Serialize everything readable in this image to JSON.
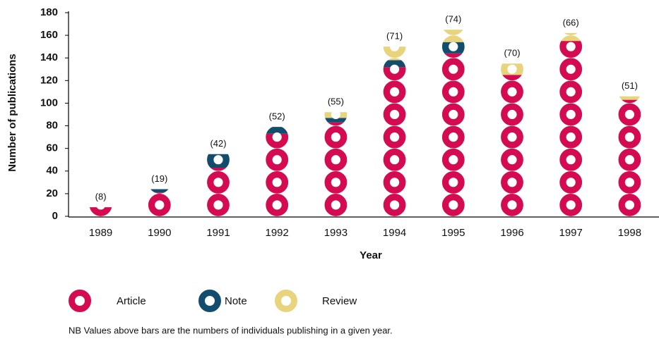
{
  "chart_data": {
    "type": "pictogram_stacked_bar",
    "xlabel": "Year",
    "ylabel": "Number of publications",
    "categories": [
      "1989",
      "1990",
      "1991",
      "1992",
      "1993",
      "1994",
      "1995",
      "1996",
      "1997",
      "1998"
    ],
    "series": [
      {
        "name": "Article",
        "color": "#d50b52",
        "values": [
          8,
          21,
          43,
          73,
          83,
          132,
          144,
          125,
          155,
          103
        ]
      },
      {
        "name": "Note",
        "color": "#124d6d",
        "values": [
          0,
          3,
          12,
          6,
          4,
          6,
          10,
          0,
          0,
          0
        ]
      },
      {
        "name": "Review",
        "color": "#e9d47e",
        "values": [
          0,
          0,
          0,
          0,
          5,
          12,
          11,
          10,
          7,
          3
        ]
      }
    ],
    "individuals": {
      "values": [
        8,
        19,
        42,
        52,
        55,
        71,
        74,
        70,
        66,
        51
      ],
      "value_labels": [
        "(8)",
        "(19)",
        "(42)",
        "(52)",
        "(55)",
        "(71)",
        "(74)",
        "(70)",
        "(66)",
        "(51)"
      ]
    },
    "icon_unit": 20,
    "ylim": [
      0,
      180
    ],
    "yticks": [
      0,
      20,
      40,
      60,
      80,
      100,
      120,
      140,
      160,
      180
    ],
    "note": "NB Values above bars are the numbers of individuals publishing in a given year."
  }
}
